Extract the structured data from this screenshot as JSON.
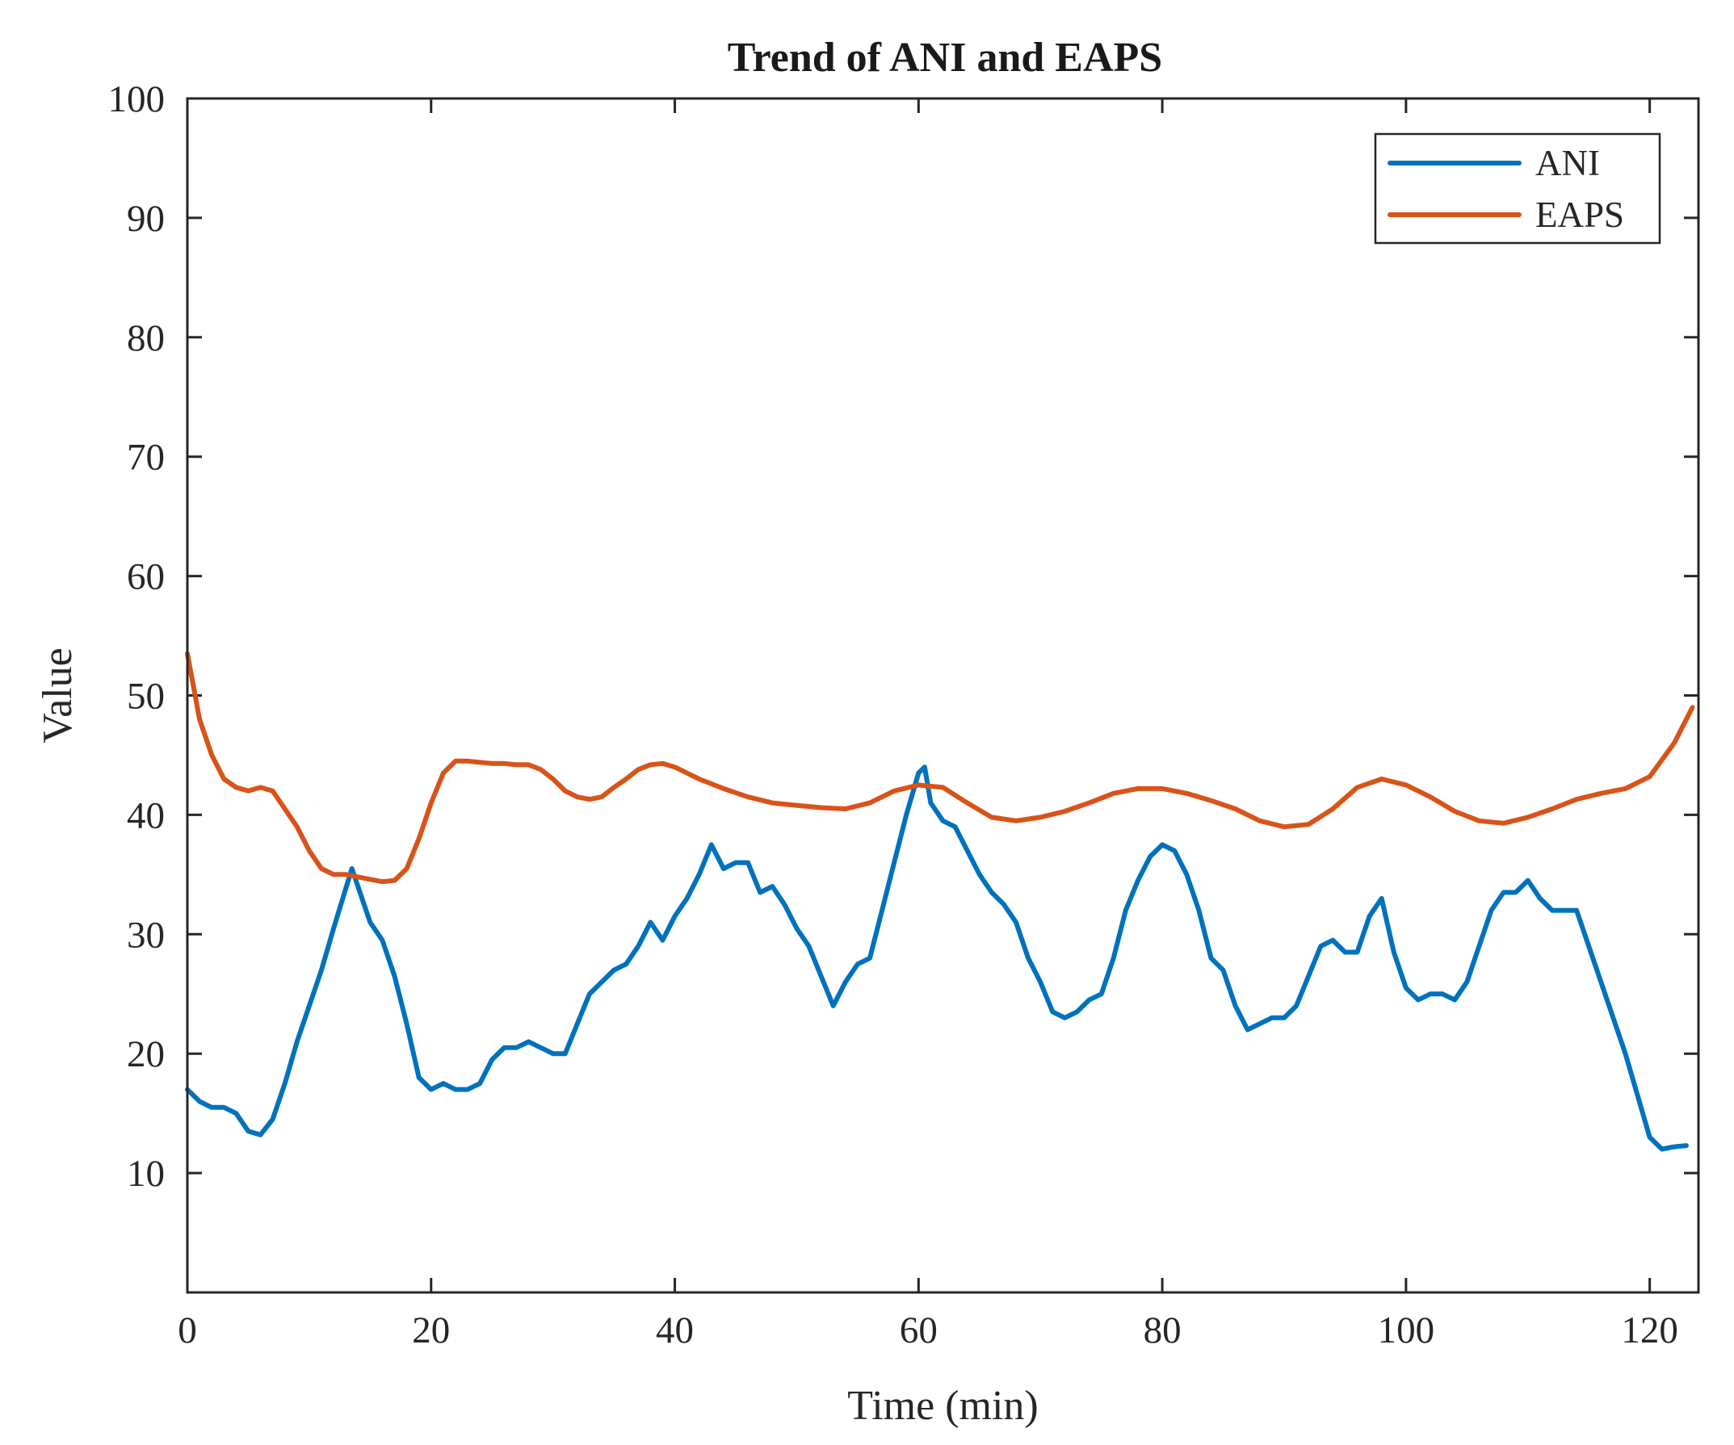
{
  "chart_data": {
    "type": "line",
    "title": "Trend of ANI and EAPS",
    "xlabel": "Time (min)",
    "ylabel": "Value",
    "xlim": [
      0,
      124
    ],
    "ylim": [
      0,
      100
    ],
    "xticks": [
      0,
      20,
      40,
      60,
      80,
      100,
      120
    ],
    "yticks": [
      10,
      20,
      30,
      40,
      50,
      60,
      70,
      80,
      90,
      100
    ],
    "grid": false,
    "legend_position": "top-right",
    "series": [
      {
        "name": "ANI",
        "color": "#0072BD",
        "x": [
          0,
          1,
          2,
          3,
          4,
          5,
          6,
          7,
          8,
          9,
          10,
          11,
          12,
          13.5,
          15,
          16,
          17,
          18,
          19,
          20,
          21,
          22,
          23,
          24,
          25,
          26,
          27,
          28,
          29,
          30,
          31,
          32,
          33,
          34,
          35,
          36,
          37,
          38,
          39,
          40,
          41,
          42,
          43,
          44,
          45,
          46,
          47,
          48,
          49,
          50,
          51,
          52,
          53,
          54,
          55,
          56,
          57,
          58,
          59,
          60,
          60.5,
          61,
          62,
          63,
          64,
          65,
          66,
          67,
          68,
          69,
          70,
          71,
          72,
          73,
          74,
          75,
          76,
          77,
          78,
          79,
          80,
          81,
          82,
          83,
          84,
          85,
          86,
          87,
          88,
          89,
          90,
          91,
          92,
          93,
          94,
          95,
          96,
          97,
          98,
          99,
          100,
          101,
          102,
          103,
          104,
          105,
          106,
          107,
          108,
          109,
          110,
          111,
          112,
          113,
          114,
          115,
          116,
          117,
          118,
          119,
          120,
          121,
          122,
          123
        ],
        "values": [
          17,
          16,
          15.5,
          15.5,
          15,
          13.5,
          13.2,
          14.5,
          17.5,
          21,
          24,
          27,
          30.5,
          35.5,
          31,
          29.5,
          26.5,
          22.5,
          18,
          17,
          17.5,
          17,
          17,
          17.5,
          19.5,
          20.5,
          20.5,
          21,
          20.5,
          20,
          20,
          22.5,
          25,
          26,
          27,
          27.5,
          29,
          31,
          29.5,
          31.5,
          33,
          35,
          37.5,
          35.5,
          36,
          36,
          33.5,
          34,
          32.5,
          30.5,
          29,
          26.5,
          24,
          26,
          27.5,
          28,
          32,
          36,
          40,
          43.5,
          44,
          41,
          39.5,
          39,
          37,
          35,
          33.5,
          32.5,
          31,
          28,
          26,
          23.5,
          23,
          23.5,
          24.5,
          25,
          28,
          32,
          34.5,
          36.5,
          37.5,
          37,
          35,
          32,
          28,
          27,
          24,
          22,
          22.5,
          23,
          23,
          24,
          26.5,
          29,
          29.5,
          28.5,
          28.5,
          31.5,
          33,
          28.5,
          25.5,
          24.5,
          25,
          25,
          24.5,
          26,
          29,
          32,
          33.5,
          33.5,
          34.5,
          33,
          32,
          32,
          32,
          29,
          26,
          23,
          20,
          16.5,
          13,
          12,
          12.2,
          12.3
        ],
        "values_note": "approximate readings from the plotted curve"
      },
      {
        "name": "EAPS",
        "color": "#D95319",
        "x": [
          0,
          1,
          2,
          3,
          4,
          5,
          6,
          7,
          8,
          9,
          10,
          11,
          12,
          13,
          14,
          15,
          16,
          17,
          18,
          19,
          20,
          21,
          22,
          23,
          24,
          25,
          26,
          27,
          28,
          29,
          30,
          31,
          32,
          33,
          34,
          35,
          36,
          37,
          38,
          39,
          40,
          42,
          44,
          46,
          48,
          50,
          52,
          54,
          56,
          58,
          60,
          62,
          64,
          66,
          68,
          70,
          72,
          74,
          76,
          78,
          80,
          82,
          84,
          86,
          88,
          90,
          92,
          94,
          96,
          98,
          100,
          102,
          104,
          106,
          108,
          110,
          112,
          114,
          116,
          118,
          120,
          122,
          123.5
        ],
        "values": [
          53.5,
          48,
          45,
          43,
          42.3,
          42,
          42.3,
          42,
          40.5,
          39,
          37,
          35.5,
          35,
          35,
          34.8,
          34.6,
          34.4,
          34.5,
          35.5,
          38,
          41,
          43.5,
          44.5,
          44.5,
          44.4,
          44.3,
          44.3,
          44.2,
          44.2,
          43.8,
          43,
          42,
          41.5,
          41.3,
          41.5,
          42.3,
          43,
          43.8,
          44.2,
          44.3,
          44,
          43,
          42.2,
          41.5,
          41,
          40.8,
          40.6,
          40.5,
          41,
          42,
          42.5,
          42.3,
          41,
          39.8,
          39.5,
          39.8,
          40.3,
          41,
          41.8,
          42.2,
          42.2,
          41.8,
          41.2,
          40.5,
          39.5,
          39,
          39.2,
          40.5,
          42.3,
          43,
          42.5,
          41.5,
          40.3,
          39.5,
          39.3,
          39.8,
          40.5,
          41.3,
          41.8,
          42.2,
          43.2,
          46,
          49
        ],
        "values_note": "approximate readings from the plotted curve"
      }
    ]
  }
}
